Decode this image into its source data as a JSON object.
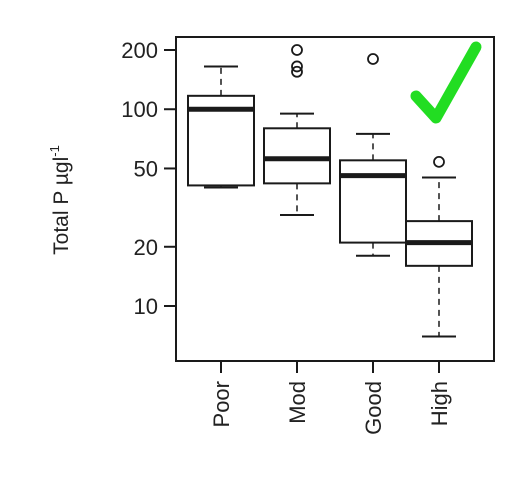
{
  "chart_data": {
    "type": "box",
    "scale": "log",
    "ylabel": "Total P µgl",
    "ylabel_superscript": "-1",
    "yticks": [
      "200",
      "100",
      "50",
      "20",
      "10"
    ],
    "yticks_values": [
      200,
      100,
      50,
      20,
      10
    ],
    "ylim": [
      6,
      220
    ],
    "categories": [
      "Poor",
      "Mod",
      "Good",
      "High"
    ],
    "boxes": [
      {
        "category": "Poor",
        "whisker_low": 40,
        "q1": 41,
        "median": 100,
        "q3": 117,
        "whisker_high": 165,
        "outliers": []
      },
      {
        "category": "Mod",
        "whisker_low": 29,
        "q1": 42,
        "median": 56,
        "q3": 80,
        "whisker_high": 95,
        "outliers": [
          200,
          165,
          155
        ]
      },
      {
        "category": "Good",
        "whisker_low": 18,
        "q1": 21,
        "median": 46,
        "q3": 55,
        "whisker_high": 75,
        "outliers": [
          180
        ]
      },
      {
        "category": "High",
        "whisker_low": 7,
        "q1": 16,
        "median": 21,
        "q3": 27,
        "whisker_high": 45,
        "outliers": [
          54
        ]
      }
    ],
    "grid": false,
    "legend": "none",
    "annotation": "green-checkmark",
    "colors": {
      "box_stroke": "#1a1a1a",
      "checkmark": "#22dd22"
    }
  }
}
